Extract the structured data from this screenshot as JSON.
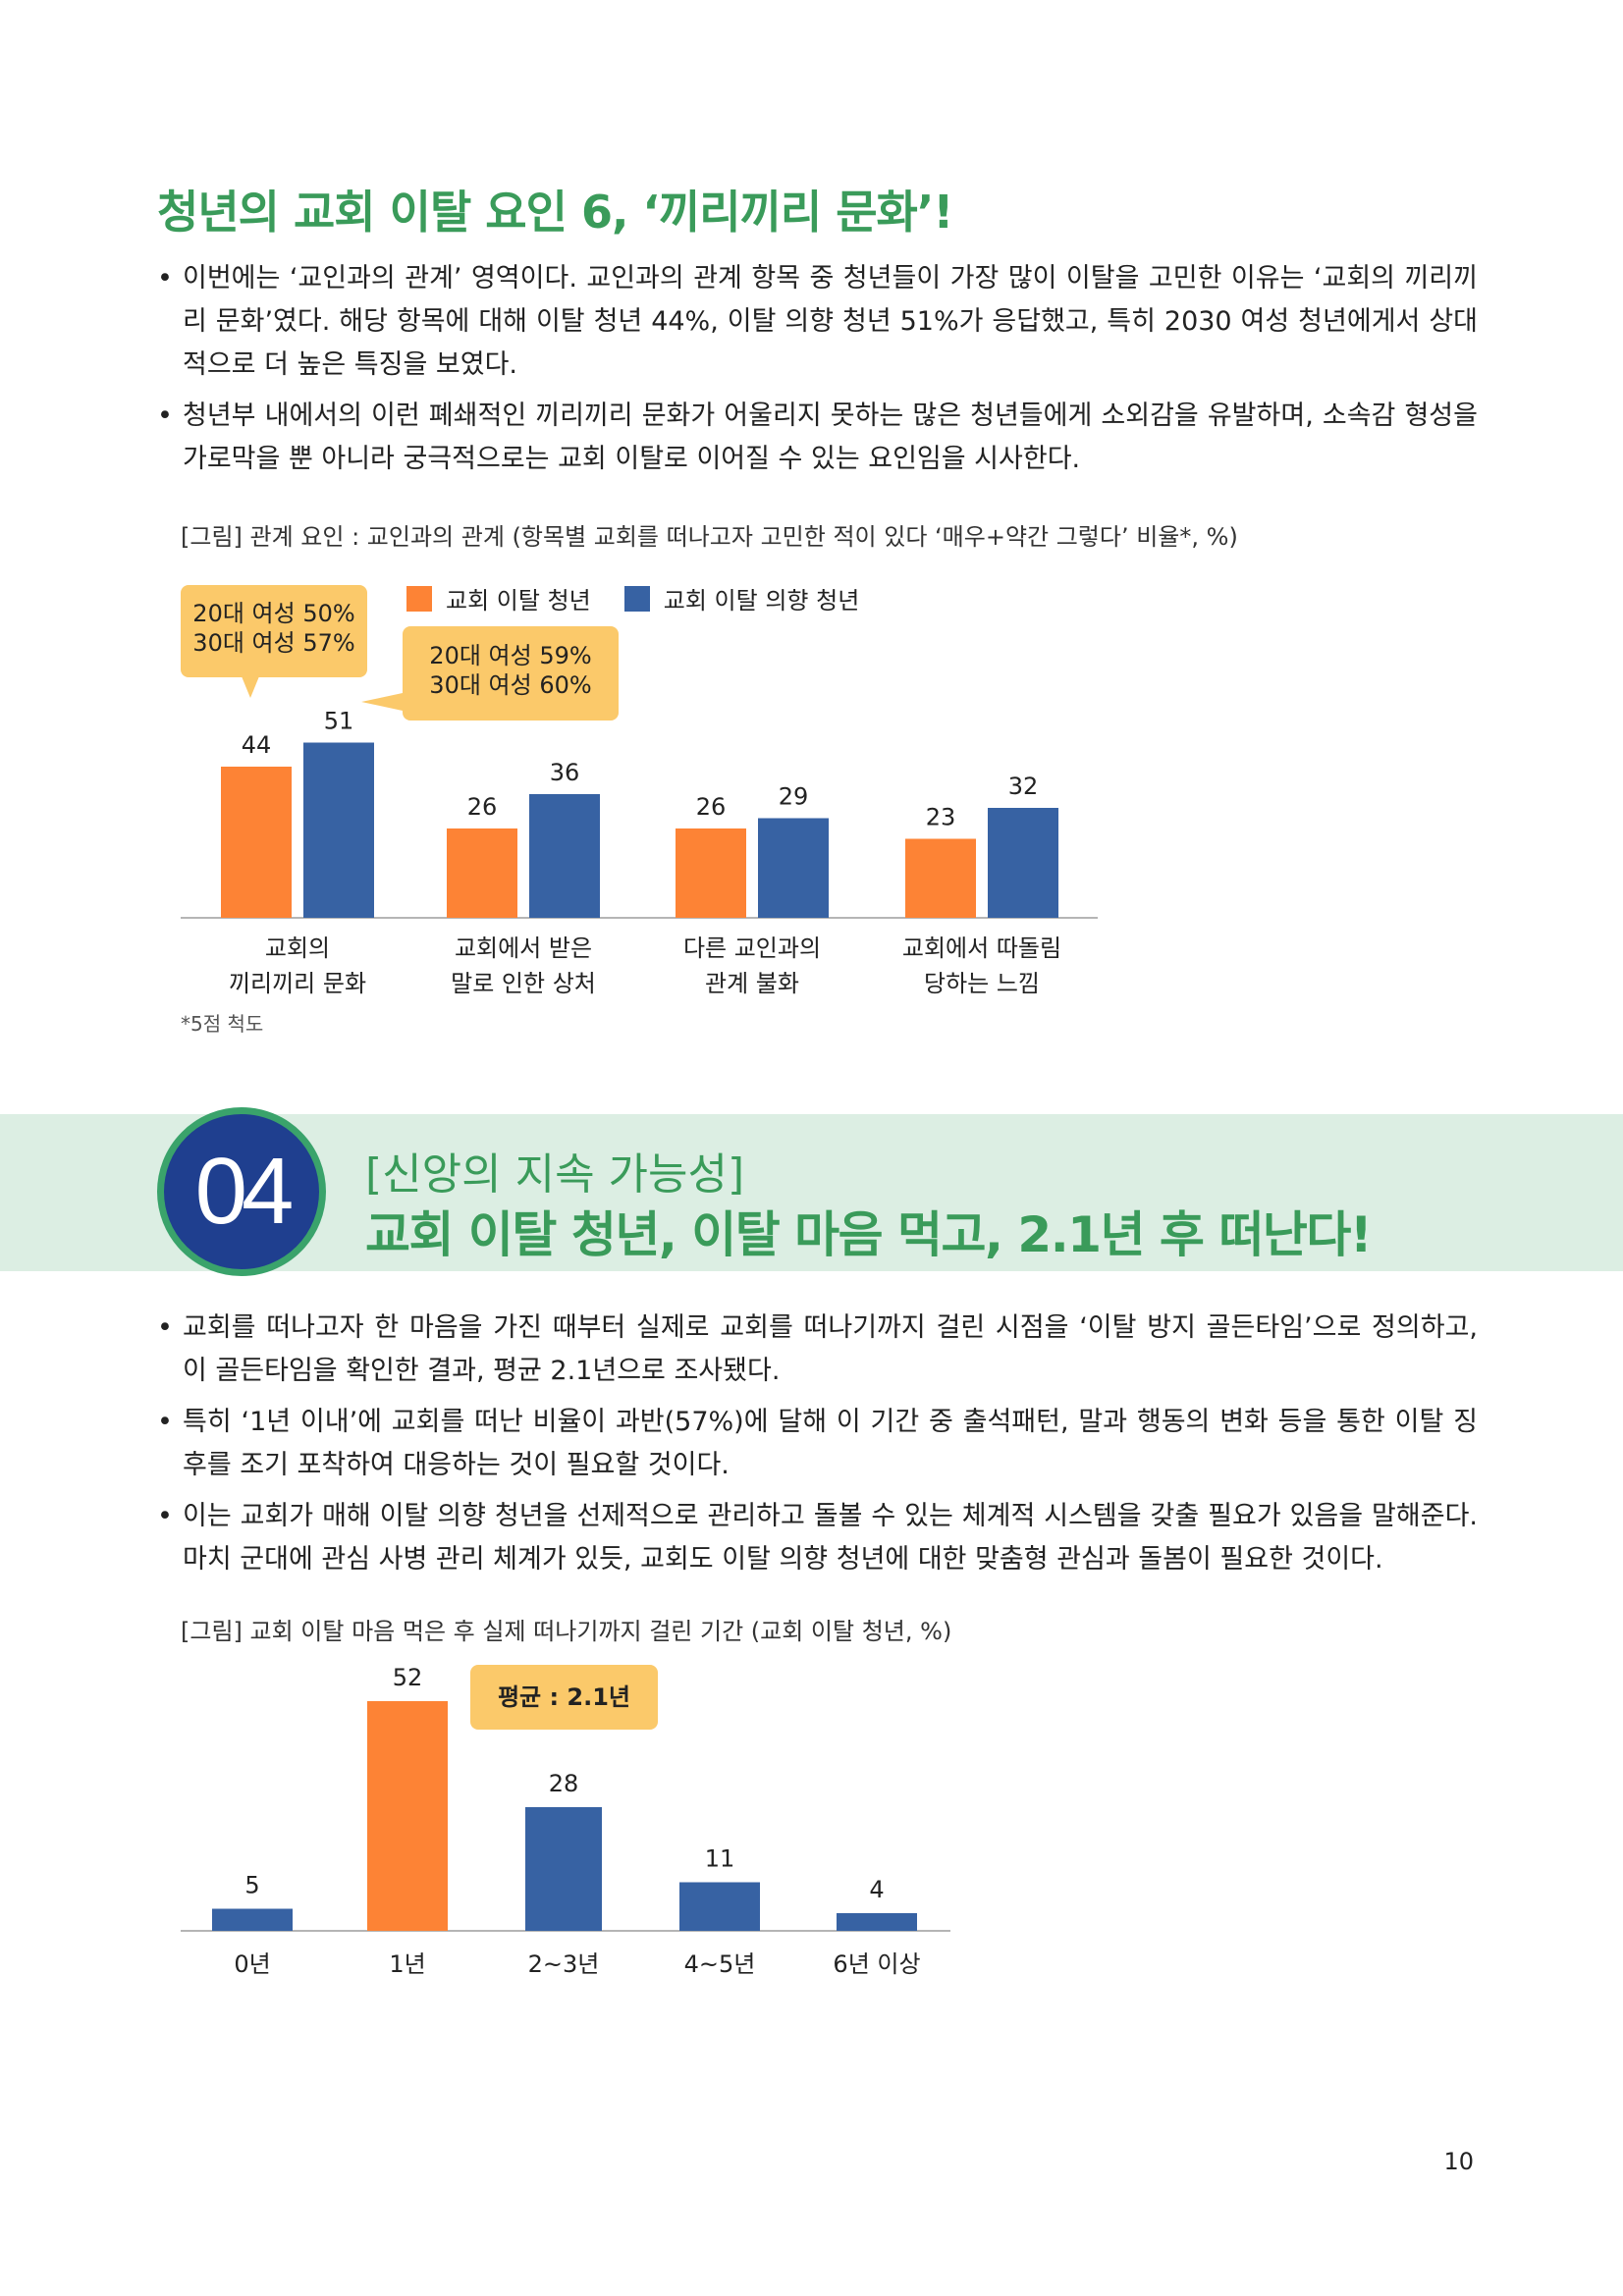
{
  "section1": {
    "title": "청년의 교회 이탈 요인 6, ‘끼리끼리 문화’!",
    "bullets": [
      "이번에는 ‘교인과의 관계’ 영역이다. 교인과의 관계 항목 중 청년들이 가장 많이 이탈을 고민한 이유는 ‘교회의 끼리끼리 문화’였다. 해당 항목에 대해 이탈 청년 44%, 이탈 의향 청년 51%가 응답했고, 특히 2030 여성 청년에게서 상대적으로 더 높은 특징을 보였다.",
      "청년부 내에서의 이런 폐쇄적인 끼리끼리 문화가 어울리지 못하는 많은 청년들에게 소외감을 유발하며, 소속감 형성을 가로막을 뿐 아니라 궁극적으로는 교회 이탈로 이어질 수 있는 요인임을 시사한다."
    ]
  },
  "chart1": {
    "caption": "[그림] 관계 요인 : 교인과의 관계 (항목별 교회를 떠나고자 고민한 적이 있다 ‘매우+약간 그렇다’ 비율*, %)",
    "note": "*5점 척도",
    "callout_left": [
      "20대 여성 50%",
      "30대 여성 57%"
    ],
    "callout_right": [
      "20대 여성 59%",
      "30대 여성 60%"
    ]
  },
  "section2": {
    "number": "04",
    "subtitle": "[신앙의 지속 가능성]",
    "title": "교회 이탈 청년, 이탈 마음 먹고, 2.1년 후 떠난다!",
    "bullets": [
      "교회를 떠나고자 한 마음을 가진 때부터 실제로 교회를 떠나기까지 걸린 시점을 ‘이탈 방지 골든타임’으로 정의하고, 이 골든타임을 확인한 결과, 평균 2.1년으로 조사됐다.",
      "특히 ‘1년 이내’에 교회를 떠난 비율이 과반(57%)에 달해 이 기간 중 출석패턴, 말과 행동의 변화 등을 통한 이탈 징후를 조기 포착하여 대응하는 것이 필요할 것이다.",
      "이는 교회가 매해 이탈 의향 청년을 선제적으로 관리하고 돌볼 수 있는 체계적 시스템을 갖출 필요가 있음을 말해준다. 마치 군대에 관심 사병 관리 체계가 있듯, 교회도 이탈 의향 청년에 대한 맞춤형 관심과 돌봄이 필요한 것이다."
    ]
  },
  "chart2": {
    "caption": "[그림] 교회 이탈 마음 먹은 후 실제 떠나기까지 걸린 기간 (교회 이탈 청년, %)",
    "callout": "평균 : 2.1년"
  },
  "chart_data": [
    {
      "type": "bar",
      "title": "관계 요인 : 교인과의 관계",
      "categories": [
        [
          "교회의",
          "끼리끼리 문화"
        ],
        [
          "교회에서 받은",
          "말로 인한 상처"
        ],
        [
          "다른 교인과의",
          "관계 불화"
        ],
        [
          "교회에서 따돌림",
          "당하는 느낌"
        ]
      ],
      "series": [
        {
          "name": "교회 이탈 청년",
          "color": "#fd8335",
          "values": [
            44,
            26,
            26,
            23
          ]
        },
        {
          "name": "교회 이탈 의향 청년",
          "color": "#3762a3",
          "values": [
            51,
            36,
            29,
            32
          ]
        }
      ],
      "ylim": [
        0,
        100
      ],
      "xlabel": "",
      "ylabel": ""
    },
    {
      "type": "bar",
      "title": "교회 이탈 마음 먹은 후 실제 떠나기까지 걸린 기간",
      "categories": [
        "0년",
        "1년",
        "2~3년",
        "4~5년",
        "6년 이상"
      ],
      "values": [
        5,
        52,
        28,
        11,
        4
      ],
      "colors": [
        "#3762a3",
        "#fd8335",
        "#3762a3",
        "#3762a3",
        "#3762a3"
      ],
      "ylim": [
        0,
        60
      ],
      "xlabel": "",
      "ylabel": ""
    }
  ],
  "page_number": "10"
}
